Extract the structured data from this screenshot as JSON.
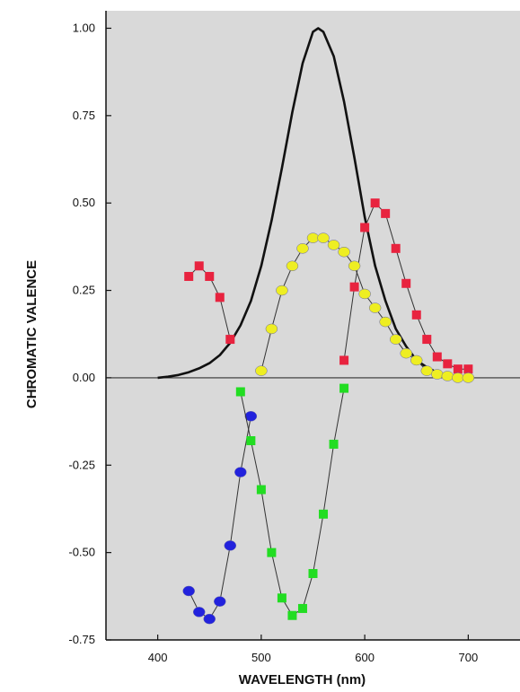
{
  "chart_data": {
    "type": "line",
    "title": "",
    "xlabel": "WAVELENGTH (nm)",
    "ylabel": "CHROMATIC VALENCE",
    "xlim": [
      350,
      750
    ],
    "ylim": [
      -0.75,
      1.05
    ],
    "x_ticks": [
      400,
      500,
      600,
      700
    ],
    "x_tick_labels": [
      "400",
      "500",
      "600",
      "700"
    ],
    "y_ticks": [
      1.0,
      0.75,
      0.5,
      0.25,
      0.0,
      -0.25,
      -0.5,
      -0.75
    ],
    "y_tick_labels": [
      "1.00",
      "0.75",
      "0.50",
      "0.25",
      "0.00",
      "-0.25",
      "-0.50",
      "-0.75"
    ],
    "background_color": "#d9d9d9",
    "grid": false,
    "zero_line": true,
    "series": [
      {
        "color": "#111111",
        "marker": "none",
        "x": [
          400,
          410,
          420,
          430,
          440,
          450,
          460,
          470,
          480,
          490,
          500,
          510,
          520,
          530,
          540,
          550,
          555,
          560,
          570,
          580,
          590,
          600,
          610,
          620,
          630,
          640,
          650,
          660,
          670,
          680,
          690,
          700
        ],
        "values": [
          0.0,
          0.003,
          0.008,
          0.016,
          0.027,
          0.042,
          0.065,
          0.1,
          0.15,
          0.22,
          0.32,
          0.45,
          0.6,
          0.76,
          0.9,
          0.99,
          1.0,
          0.99,
          0.92,
          0.79,
          0.63,
          0.46,
          0.32,
          0.22,
          0.14,
          0.09,
          0.05,
          0.03,
          0.015,
          0.008,
          0.004,
          0.002
        ]
      },
      {
        "color": "#e8233f",
        "marker": "square",
        "x": [
          430,
          440,
          450,
          460,
          470,
          580,
          590,
          600,
          610,
          620,
          630,
          640,
          650,
          660,
          670,
          680,
          690,
          700
        ],
        "values": [
          0.29,
          0.32,
          0.29,
          0.23,
          0.11,
          0.05,
          0.26,
          0.43,
          0.5,
          0.47,
          0.37,
          0.27,
          0.18,
          0.11,
          0.06,
          0.04,
          0.025,
          0.025
        ]
      },
      {
        "color": "#2222dd",
        "marker": "circle",
        "x": [
          430,
          440,
          450,
          460,
          470,
          480,
          490
        ],
        "values": [
          -0.61,
          -0.67,
          -0.69,
          -0.64,
          -0.48,
          -0.27,
          -0.11
        ]
      },
      {
        "color": "#22dd22",
        "marker": "square",
        "x": [
          480,
          490,
          500,
          510,
          520,
          530,
          540,
          550,
          560,
          570,
          580
        ],
        "values": [
          -0.04,
          -0.18,
          -0.32,
          -0.5,
          -0.63,
          -0.68,
          -0.66,
          -0.56,
          -0.39,
          -0.19,
          -0.03
        ]
      },
      {
        "color": "#eeee22",
        "marker": "circle",
        "x": [
          500,
          510,
          520,
          530,
          540,
          550,
          560,
          570,
          580,
          590,
          600,
          610,
          620,
          630,
          640,
          650,
          660,
          670,
          680,
          690,
          700
        ],
        "values": [
          0.02,
          0.14,
          0.25,
          0.32,
          0.37,
          0.4,
          0.4,
          0.38,
          0.36,
          0.32,
          0.24,
          0.2,
          0.16,
          0.11,
          0.07,
          0.05,
          0.02,
          0.01,
          0.005,
          0.0,
          0.0
        ]
      }
    ]
  }
}
